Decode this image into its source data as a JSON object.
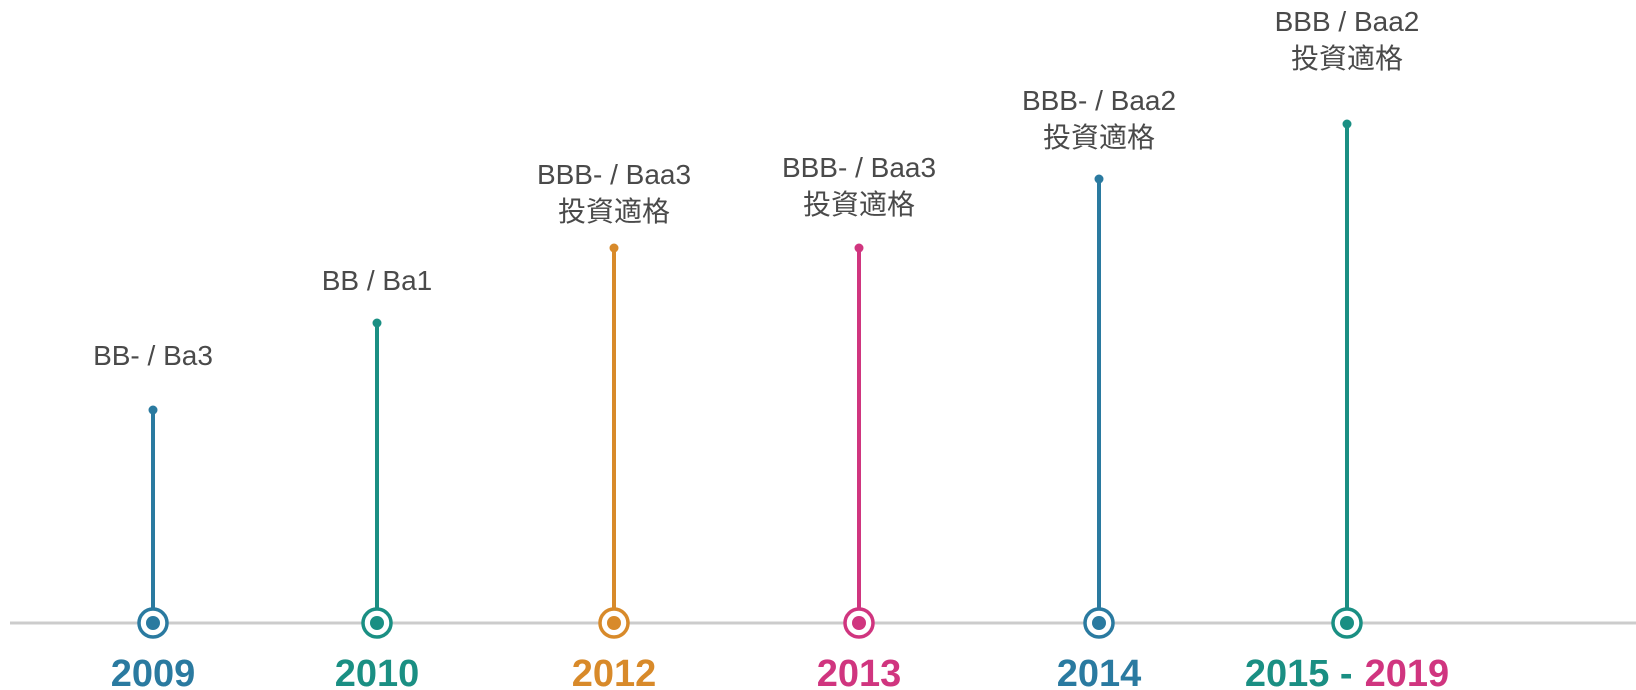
{
  "milestones": [
    {
      "year": "2009",
      "rating": "BB- / Ba3",
      "color": "#2a7aa0"
    },
    {
      "year": "2010",
      "rating": "BB / Ba1",
      "color": "#1a8f83"
    },
    {
      "year": "2012",
      "rating": "BBB- / Baa3",
      "note": "投資適格",
      "color": "#d88a2a"
    },
    {
      "year": "2013",
      "rating": "BBB- / Baa3",
      "note": "投資適格",
      "color": "#d0357f"
    },
    {
      "year": "2014",
      "rating": "BBB- / Baa2",
      "note": "投資適格",
      "color": "#2a7aa0"
    },
    {
      "year_parts": [
        {
          "text": "2015 -",
          "color": "#1a8f83"
        },
        {
          "text": "2019",
          "color": "#d0357f"
        }
      ],
      "rating": "BBB / Baa2",
      "note": "投資適格",
      "color": "#1a8f83"
    }
  ]
}
